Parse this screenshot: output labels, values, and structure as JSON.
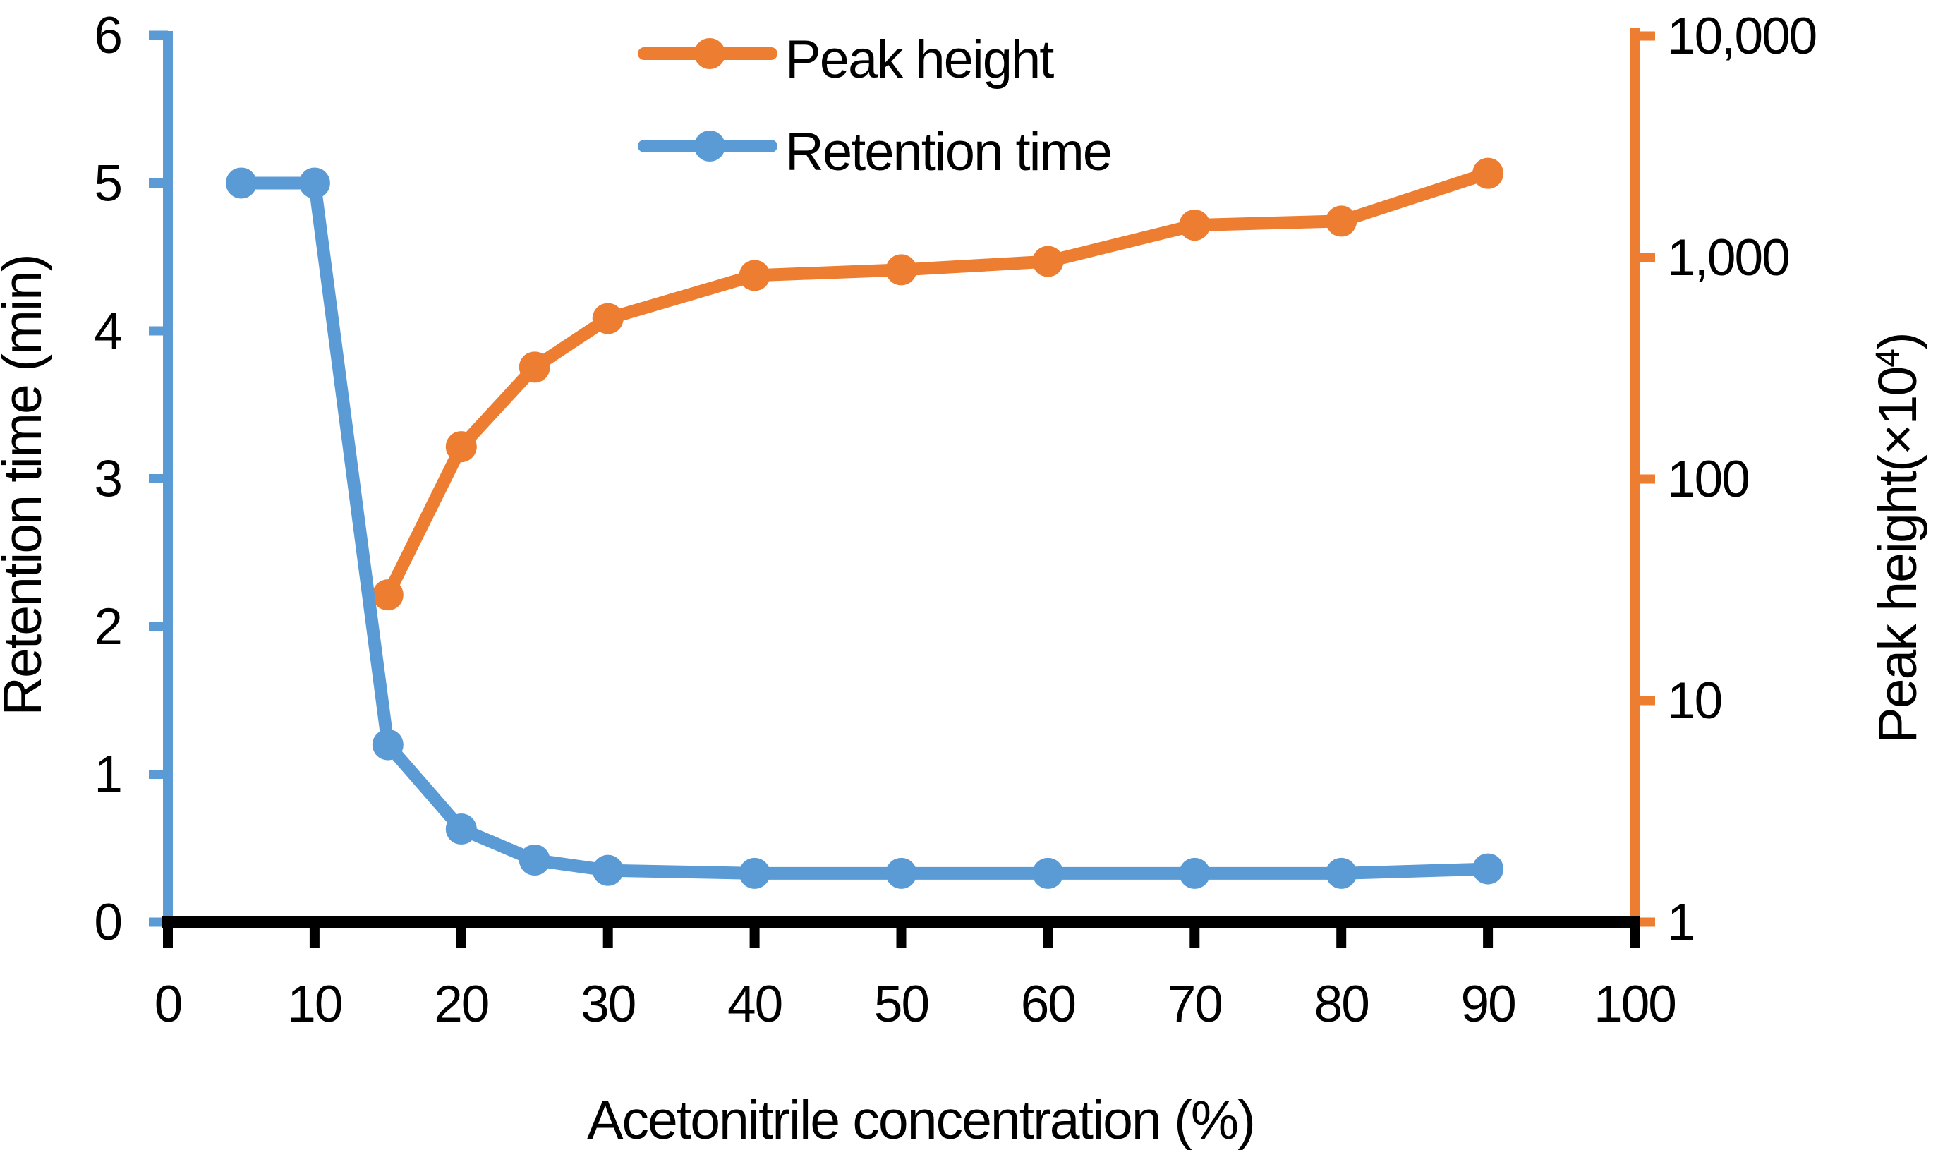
{
  "chart_data": {
    "type": "line",
    "title": "",
    "xlabel": "Acetonitrile concentration (%)",
    "background": "#FFFFFF",
    "grid": false,
    "legend": {
      "position": "top-center",
      "items": [
        "Peak height",
        "Retention time"
      ]
    },
    "x_axis": {
      "min": 0,
      "max": 100,
      "tick_step": 10,
      "tick_labels": [
        "0",
        "10",
        "20",
        "30",
        "40",
        "50",
        "60",
        "70",
        "80",
        "90",
        "100"
      ],
      "color": "#000000"
    },
    "left_axis": {
      "label": "Retention time (min)",
      "scale": "linear",
      "min": 0,
      "max": 6,
      "tick_labels": [
        "0",
        "1",
        "2",
        "3",
        "4",
        "5",
        "6"
      ],
      "color": "#5B9BD5"
    },
    "right_axis": {
      "label_main": "Peak height(×10",
      "label_sup": "4",
      "label_close": ")",
      "scale": "log",
      "min": 1,
      "max": 10000,
      "tick_labels": [
        "1",
        "10",
        "100",
        "1,000",
        "10,000"
      ],
      "color": "#ED7D31"
    },
    "series": [
      {
        "name": "Peak height",
        "axis": "right",
        "color": "#ED7D31",
        "x": [
          15,
          20,
          25,
          30,
          40,
          50,
          60,
          70,
          80,
          90
        ],
        "values": [
          30,
          140,
          320,
          530,
          830,
          880,
          960,
          1400,
          1460,
          2400
        ]
      },
      {
        "name": "Retention time",
        "axis": "left",
        "color": "#5B9BD5",
        "x": [
          5,
          10,
          15,
          20,
          25,
          30,
          40,
          50,
          60,
          70,
          80,
          90
        ],
        "values": [
          5.0,
          5.0,
          1.2,
          0.63,
          0.42,
          0.35,
          0.33,
          0.33,
          0.33,
          0.33,
          0.33,
          0.36
        ]
      }
    ]
  }
}
